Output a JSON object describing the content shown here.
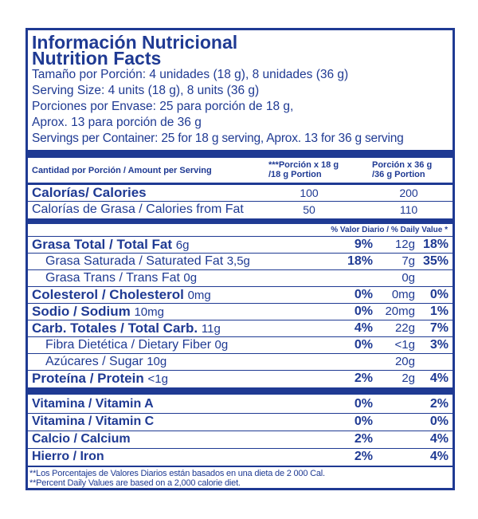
{
  "header": {
    "title_es": "Información Nutricional",
    "title_en": "Nutrition Facts"
  },
  "serving": {
    "size_es": "Tamaño por Porción: 4 unidades (18 g), 8 unidades (36 g)",
    "size_en": "Serving Size: 4 units (18 g), 8 units (36 g)",
    "per_container_es_1": "Porciones por Envase: 25 para porción de 18 g,",
    "per_container_es_2": "Aprox. 13 para porción de 36 g",
    "per_container_en": "Servings per Container: 25 for 18 g serving, Aprox. 13 for 36 g serving"
  },
  "table_header": {
    "amount_label": "Cantidad por Porción / Amount per Serving",
    "col1_line1": "***Porción x 18 g",
    "col1_line2": "/18 g Portion",
    "col2_line1": "Porción x 36 g",
    "col2_line2": "/36 g Portion"
  },
  "calories": {
    "label": "Calorías/ Calories",
    "v18": "100",
    "v36": "200",
    "fat_label": "Calorías de Grasa / Calories from Fat",
    "fat_v18": "50",
    "fat_v36": "110"
  },
  "daily_value_header": "% Valor Diario / % Daily Value *",
  "nutrients": [
    {
      "label": "Grasa Total / Total Fat",
      "amount": "6g",
      "dv18": "9%",
      "amount36": "12g",
      "dv36": "18%"
    },
    {
      "label": "Grasa Saturada / Saturated Fat",
      "amount": "3,5g",
      "dv18": "18%",
      "amount36": "7g",
      "dv36": "35%"
    },
    {
      "label": "Grasa Trans / Trans Fat",
      "amount": "0g",
      "dv18": "",
      "amount36": "0g",
      "dv36": ""
    },
    {
      "label": "Colesterol / Cholesterol",
      "amount": "0mg",
      "dv18": "0%",
      "amount36": "0mg",
      "dv36": "0%"
    },
    {
      "label": "Sodio / Sodium",
      "amount": "10mg",
      "dv18": "0%",
      "amount36": "20mg",
      "dv36": "1%"
    },
    {
      "label": "Carb. Totales / Total Carb.",
      "amount": "11g",
      "dv18": "4%",
      "amount36": "22g",
      "dv36": "7%"
    },
    {
      "label": "Fibra Dietética / Dietary Fiber",
      "amount": "0g",
      "dv18": "0%",
      "amount36": "<1g",
      "dv36": "3%"
    },
    {
      "label": "Azúcares / Sugar",
      "amount": "10g",
      "dv18": "",
      "amount36": "20g",
      "dv36": ""
    },
    {
      "label": "Proteína / Protein",
      "amount": "<1g",
      "dv18": "2%",
      "amount36": "2g",
      "dv36": "4%"
    }
  ],
  "vitamins": [
    {
      "label": "Vitamina / Vitamin  A",
      "dv18": "0%",
      "dv36": "2%"
    },
    {
      "label": "Vitamina / Vitamin  C",
      "dv18": "0%",
      "dv36": "0%"
    },
    {
      "label": "Calcio / Calcium",
      "dv18": "2%",
      "dv36": "4%"
    },
    {
      "label": "Hierro / Iron",
      "dv18": "2%",
      "dv36": "4%"
    }
  ],
  "footnotes": {
    "es": "**Los Porcentajes de Valores Diarios están basados en una dieta de 2 000 Cal.",
    "en": "**Percent Daily Values are based on a 2,000 calorie diet."
  },
  "colors": {
    "ink": "#1f3a93",
    "background": "#ffffff"
  }
}
